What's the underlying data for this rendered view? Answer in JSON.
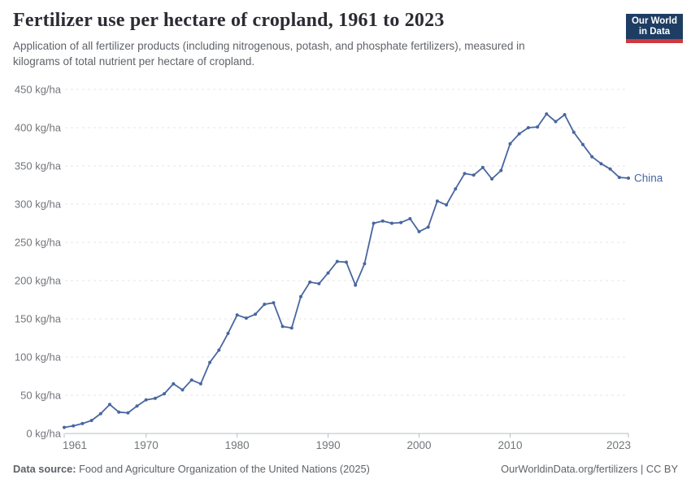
{
  "header": {
    "title": "Fertilizer use per hectare of cropland, 1961 to 2023",
    "subtitle_line1": "Application of all fertilizer products (including nitrogenous, potash, and phosphate fertilizers), measured in",
    "subtitle_line2": "kilograms of total nutrient per hectare of cropland.",
    "logo": {
      "line1": "Our World",
      "line2": "in Data",
      "bg_color": "#1d3d63",
      "accent_color": "#d0383f"
    }
  },
  "chart_data": {
    "type": "line",
    "title": "Fertilizer use per hectare of cropland, 1961 to 2023",
    "unit": "kg/ha",
    "xlabel": "",
    "ylabel": "kg/ha",
    "xlim": [
      1961,
      2023
    ],
    "ylim": [
      0,
      450
    ],
    "yticks": [
      0,
      50,
      100,
      150,
      200,
      250,
      300,
      350,
      400,
      450
    ],
    "xticks": [
      1961,
      1970,
      1980,
      1990,
      2000,
      2010,
      2023
    ],
    "grid": "horizontal-dashed",
    "legend": "line-end-label",
    "years": [
      1961,
      1962,
      1963,
      1964,
      1965,
      1966,
      1967,
      1968,
      1969,
      1970,
      1971,
      1972,
      1973,
      1974,
      1975,
      1976,
      1977,
      1978,
      1979,
      1980,
      1981,
      1982,
      1983,
      1984,
      1985,
      1986,
      1987,
      1988,
      1989,
      1990,
      1991,
      1992,
      1993,
      1994,
      1995,
      1996,
      1997,
      1998,
      1999,
      2000,
      2001,
      2002,
      2003,
      2004,
      2005,
      2006,
      2007,
      2008,
      2009,
      2010,
      2011,
      2012,
      2013,
      2014,
      2015,
      2016,
      2017,
      2018,
      2019,
      2020,
      2021,
      2022,
      2023
    ],
    "series": [
      {
        "name": "China",
        "color": "#4866a0",
        "values": [
          8,
          10,
          13,
          17,
          26,
          38,
          28,
          27,
          36,
          44,
          46,
          52,
          65,
          57,
          70,
          65,
          93,
          109,
          131,
          155,
          151,
          156,
          169,
          171,
          140,
          138,
          179,
          198,
          196,
          210,
          225,
          224,
          194,
          222,
          275,
          278,
          275,
          276,
          281,
          264,
          270,
          304,
          299,
          320,
          340,
          338,
          348,
          333,
          344,
          379,
          392,
          400,
          401,
          418,
          408,
          417,
          394,
          378,
          362,
          353,
          346,
          335,
          334
        ]
      }
    ],
    "axis_color": "#b9bcbf",
    "gridline_color": "#e3e4e6",
    "tick_label_color": "#72757a"
  },
  "footer": {
    "source_label": "Data source:",
    "source_text": " Food and Agriculture Organization of the United Nations (2025)",
    "credit": "OurWorldinData.org/fertilizers | CC BY"
  }
}
